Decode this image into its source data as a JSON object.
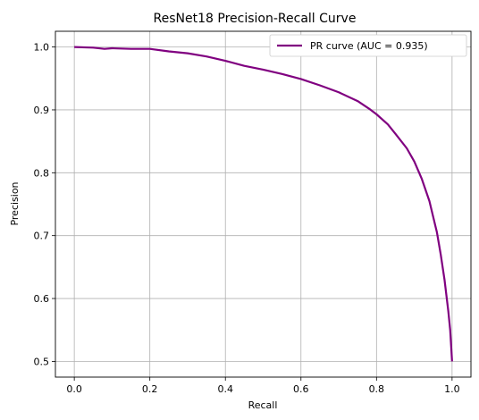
{
  "chart_data": {
    "type": "line",
    "title": "ResNet18 Precision-Recall Curve",
    "xlabel": "Recall",
    "ylabel": "Precision",
    "xlim": [
      -0.05,
      1.05
    ],
    "ylim": [
      0.475,
      1.025
    ],
    "xticks": [
      "0.0",
      "0.2",
      "0.4",
      "0.6",
      "0.8",
      "1.0"
    ],
    "yticks": [
      "0.5",
      "0.6",
      "0.7",
      "0.8",
      "0.9",
      "1.0"
    ],
    "grid": true,
    "legend_position": "top-right",
    "series": [
      {
        "name": "PR curve (AUC = 0.935)",
        "color": "#800080",
        "x": [
          0.0,
          0.05,
          0.08,
          0.1,
          0.15,
          0.2,
          0.25,
          0.3,
          0.35,
          0.4,
          0.45,
          0.5,
          0.55,
          0.6,
          0.65,
          0.7,
          0.75,
          0.78,
          0.8,
          0.83,
          0.85,
          0.88,
          0.9,
          0.92,
          0.94,
          0.95,
          0.96,
          0.97,
          0.98,
          0.99,
          0.995,
          1.0
        ],
        "y": [
          1.0,
          0.999,
          0.997,
          0.998,
          0.997,
          0.997,
          0.993,
          0.99,
          0.985,
          0.978,
          0.97,
          0.964,
          0.957,
          0.949,
          0.939,
          0.928,
          0.914,
          0.902,
          0.893,
          0.877,
          0.862,
          0.839,
          0.818,
          0.79,
          0.755,
          0.73,
          0.705,
          0.67,
          0.63,
          0.58,
          0.55,
          0.5
        ]
      }
    ]
  }
}
